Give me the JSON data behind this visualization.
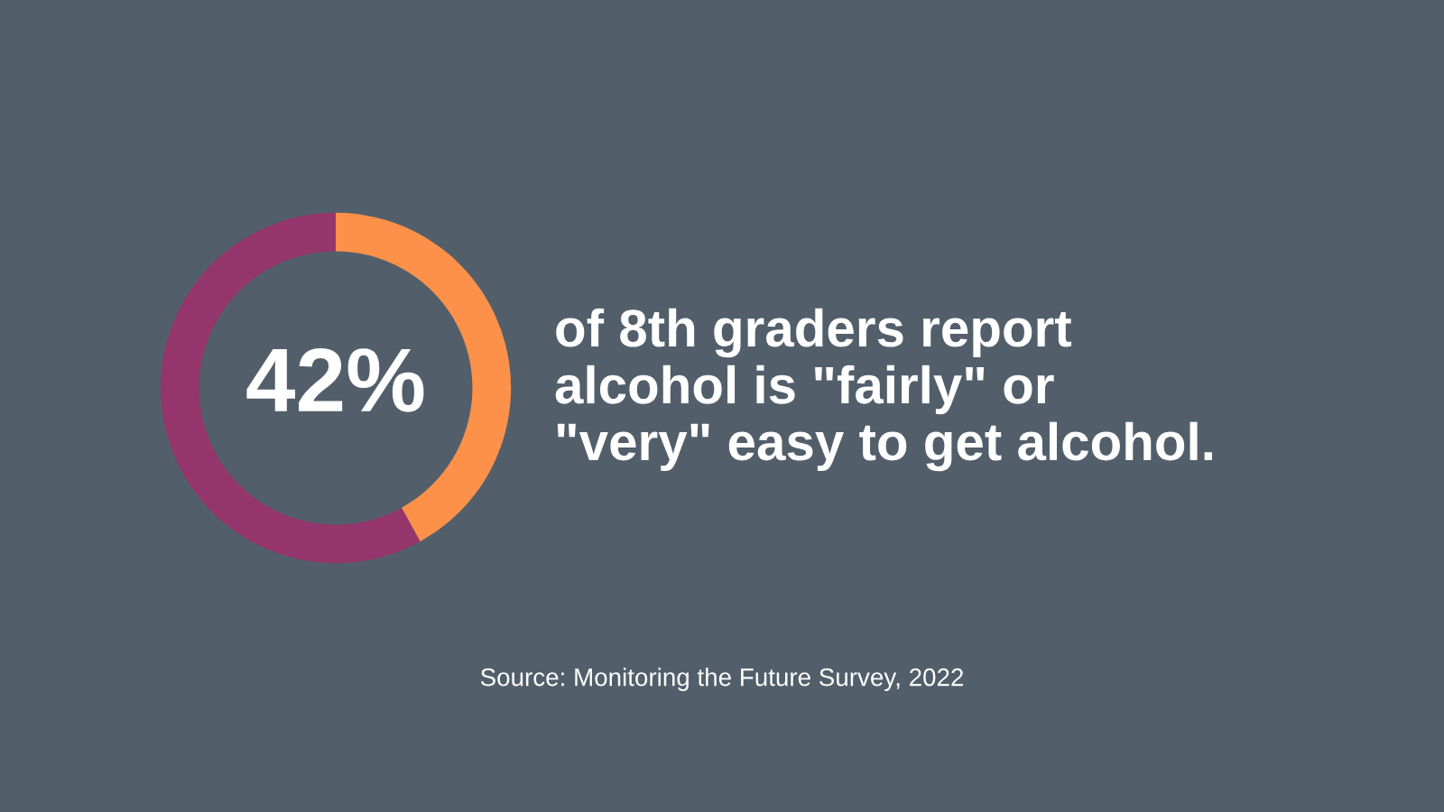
{
  "chart_data": {
    "type": "donut",
    "title": "of 8th graders report\nalcohol is \"fairly\" or\n\"very\" easy to get alcohol.",
    "categories": [
      null,
      null
    ],
    "values": [
      42,
      58
    ],
    "colors": [
      "#fd914a",
      "#94366b"
    ],
    "value_labels": [
      "42%",
      null
    ],
    "annotations": [
      "Source: Monitoring the Future Survey, 2022"
    ]
  }
}
